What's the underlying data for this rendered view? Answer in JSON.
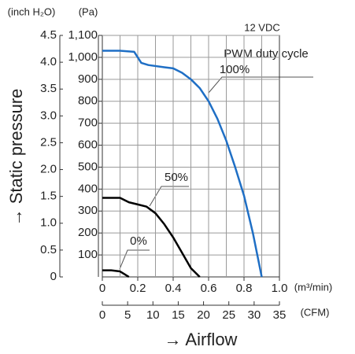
{
  "chart_data": {
    "type": "line",
    "y_unit_label": "(Pa)",
    "y2_unit_label": "(inch H₂O)",
    "x_unit_label": "(m³/min)",
    "x2_unit_label": "(CFM)",
    "y_title": "→ Static pressure",
    "x_title": "→ Airflow",
    "voltage_label": "12 VDC",
    "legend_title": "PWM duty cycle",
    "xlim": [
      0,
      1.0
    ],
    "xticks": [
      0,
      0.2,
      0.4,
      0.6,
      0.8,
      {
        "value": 1.0,
        "label": "1.0"
      }
    ],
    "xgrid": [
      0.1,
      0.2,
      0.3,
      0.4,
      0.5,
      0.6,
      0.7,
      0.8,
      0.9
    ],
    "x2lim": [
      0,
      35
    ],
    "x2ticks": [
      0,
      5,
      10,
      15,
      20,
      25,
      30,
      35
    ],
    "ylim": [
      0,
      1100
    ],
    "yticks": [
      100,
      200,
      300,
      400,
      500,
      600,
      700,
      800,
      900,
      {
        "value": 1000,
        "label": "1,000"
      },
      {
        "value": 1100,
        "label": "1,100"
      }
    ],
    "y2lim": [
      0,
      4.5
    ],
    "y2ticks": [
      0,
      0.5,
      {
        "value": 1.0,
        "label": "1.0"
      },
      1.5,
      {
        "value": 2.0,
        "label": "2.0"
      },
      2.5,
      {
        "value": 3.0,
        "label": "3.0"
      },
      3.5,
      {
        "value": 4.0,
        "label": "4.0"
      },
      4.5
    ],
    "grid": true,
    "series": [
      {
        "name": "100%",
        "color": "#1f6fc5",
        "x": [
          0,
          0.1,
          0.18,
          0.2,
          0.22,
          0.26,
          0.35,
          0.4,
          0.45,
          0.5,
          0.55,
          0.6,
          0.65,
          0.7,
          0.75,
          0.8,
          0.85,
          0.9
        ],
        "values": [
          1030,
          1030,
          1025,
          1000,
          975,
          965,
          955,
          950,
          930,
          900,
          860,
          800,
          720,
          620,
          500,
          370,
          200,
          0
        ]
      },
      {
        "name": "50%",
        "color": "#000000",
        "x": [
          0,
          0.1,
          0.15,
          0.2,
          0.25,
          0.3,
          0.35,
          0.4,
          0.45,
          0.5,
          0.55
        ],
        "values": [
          360,
          360,
          340,
          330,
          320,
          290,
          240,
          180,
          110,
          40,
          0
        ]
      },
      {
        "name": "0%",
        "color": "#000000",
        "x": [
          0,
          0.05,
          0.1,
          0.12,
          0.15
        ],
        "values": [
          30,
          30,
          25,
          15,
          0
        ]
      }
    ]
  }
}
